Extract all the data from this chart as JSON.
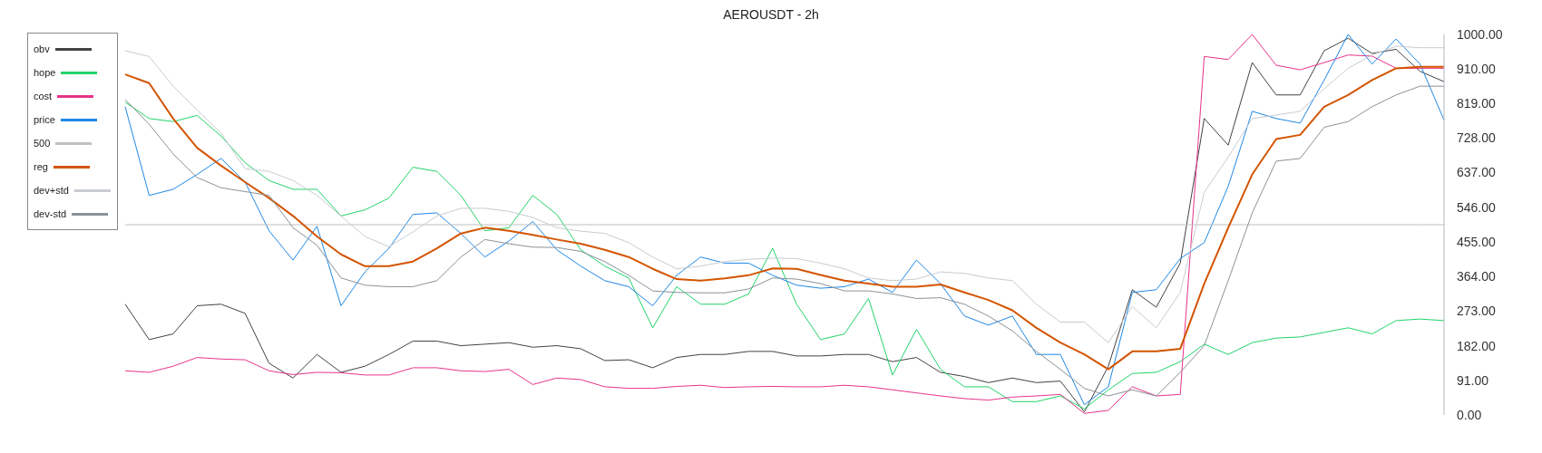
{
  "chart_data": {
    "type": "line",
    "title": "AEROUSDT - 2h",
    "categories": [
      null,
      null,
      null,
      null,
      null,
      null,
      null,
      null,
      null,
      null,
      null,
      null,
      null,
      null,
      null,
      null,
      null,
      null,
      null,
      null,
      null,
      null,
      null,
      null,
      null,
      null,
      null,
      null,
      null,
      null,
      null,
      null,
      null,
      null,
      null,
      null,
      null,
      null,
      null,
      null,
      null,
      null,
      null,
      null,
      null,
      null,
      null,
      null,
      null,
      null,
      null,
      null,
      null,
      null,
      null,
      null
    ],
    "series": [
      {
        "name": "obv",
        "color": "#424242",
        "values": [
          291,
          198,
          213,
          287,
          291,
          267,
          136,
          97,
          159,
          112,
          128,
          159,
          194,
          194,
          182,
          186,
          190,
          178,
          182,
          174,
          143,
          145,
          124,
          151,
          159,
          159,
          167,
          167,
          155,
          155,
          159,
          159,
          140,
          151,
          112,
          101,
          85,
          97,
          85,
          89,
          8,
          128,
          329,
          283,
          399,
          779,
          709,
          926,
          841,
          841,
          957,
          990,
          950,
          961,
          903,
          876
        ]
      },
      {
        "name": "hope",
        "color": "#22d36b",
        "values": [
          822,
          779,
          771,
          787,
          733,
          663,
          616,
          593,
          593,
          523,
          539,
          570,
          651,
          640,
          577,
          484,
          492,
          577,
          527,
          434,
          391,
          360,
          229,
          337,
          291,
          291,
          318,
          438,
          291,
          198,
          213,
          306,
          105,
          225,
          120,
          74,
          74,
          35,
          35,
          50,
          16,
          66,
          109,
          112,
          140,
          186,
          159,
          190,
          202,
          205,
          217,
          229,
          213,
          248,
          252,
          248
        ]
      },
      {
        "name": "cost",
        "color": "#e8338a",
        "values": [
          116,
          112,
          128,
          151,
          147,
          145,
          116,
          106,
          112,
          111,
          105,
          105,
          124,
          124,
          116,
          114,
          120,
          80,
          97,
          93,
          74,
          70,
          70,
          75,
          78,
          72,
          74,
          75,
          74,
          74,
          78,
          74,
          66,
          58,
          50,
          43,
          39,
          47,
          50,
          54,
          4,
          12,
          74,
          50,
          54,
          942,
          934,
          1000,
          919,
          907,
          926,
          946,
          943,
          911,
          911,
          911
        ]
      },
      {
        "name": "price",
        "color": "#1e88e5",
        "values": [
          810,
          577,
          593,
          632,
          674,
          612,
          484,
          407,
          496,
          287,
          376,
          438,
          527,
          531,
          477,
          415,
          457,
          508,
          434,
          391,
          353,
          337,
          287,
          367,
          415,
          399,
          399,
          367,
          341,
          333,
          337,
          357,
          322,
          407,
          345,
          260,
          236,
          260,
          159,
          159,
          27,
          74,
          322,
          329,
          411,
          453,
          601,
          798,
          779,
          767,
          880,
          1000,
          922,
          988,
          922,
          775
        ]
      },
      {
        "name": "500",
        "color": "#c0c0c0",
        "values": [
          500,
          500,
          500,
          500,
          500,
          500,
          500,
          500,
          500,
          500,
          500,
          500,
          500,
          500,
          500,
          500,
          500,
          500,
          500,
          500,
          500,
          500,
          500,
          500,
          500,
          500,
          500,
          500,
          500,
          500,
          500,
          500,
          500,
          500,
          500,
          500,
          500,
          500,
          500,
          500,
          500,
          500,
          500,
          500,
          500,
          500,
          500,
          500,
          500,
          500,
          500,
          500,
          500,
          500,
          500,
          500
        ]
      },
      {
        "name": "reg",
        "color": "#d35400",
        "values": [
          895,
          872,
          779,
          702,
          655,
          612,
          570,
          523,
          469,
          422,
          391,
          391,
          403,
          438,
          477,
          492,
          484,
          473,
          461,
          450,
          434,
          415,
          384,
          357,
          353,
          359,
          367,
          385,
          384,
          368,
          353,
          345,
          337,
          337,
          343,
          322,
          302,
          275,
          229,
          190,
          159,
          120,
          167,
          167,
          174,
          345,
          492,
          632,
          725,
          736,
          810,
          841,
          880,
          911,
          915,
          915
        ]
      },
      {
        "name": "dev+std",
        "color": "#c8ccd0",
        "values": [
          957,
          942,
          864,
          802,
          740,
          647,
          640,
          616,
          577,
          523,
          469,
          442,
          481,
          523,
          543,
          543,
          535,
          519,
          492,
          483,
          477,
          453,
          415,
          384,
          391,
          403,
          409,
          412,
          411,
          399,
          384,
          360,
          353,
          357,
          376,
          372,
          360,
          353,
          291,
          244,
          244,
          190,
          285,
          229,
          322,
          585,
          678,
          779,
          788,
          798,
          857,
          911,
          946,
          969,
          965,
          965
        ]
      },
      {
        "name": "dev-std",
        "color": "#8a9299",
        "values": [
          829,
          764,
          686,
          624,
          597,
          587,
          577,
          492,
          446,
          360,
          341,
          337,
          337,
          353,
          415,
          461,
          450,
          441,
          440,
          430,
          403,
          367,
          326,
          322,
          321,
          321,
          331,
          360,
          357,
          345,
          326,
          326,
          318,
          306,
          308,
          291,
          260,
          221,
          167,
          120,
          70,
          50,
          66,
          50,
          112,
          182,
          353,
          531,
          667,
          674,
          756,
          771,
          810,
          841,
          864,
          864
        ]
      }
    ],
    "ylim": [
      0,
      1000
    ],
    "yticks": [
      {
        "value": 0,
        "label": "0.00"
      },
      {
        "value": 91,
        "label": "91.00"
      },
      {
        "value": 182,
        "label": "182.00"
      },
      {
        "value": 273,
        "label": "273.00"
      },
      {
        "value": 364,
        "label": "364.00"
      },
      {
        "value": 455,
        "label": "455.00"
      },
      {
        "value": 546,
        "label": "546.00"
      },
      {
        "value": 637,
        "label": "637.00"
      },
      {
        "value": 728,
        "label": "728.00"
      },
      {
        "value": 819,
        "label": "819.00"
      },
      {
        "value": 910,
        "label": "910.00"
      },
      {
        "value": 1000,
        "label": "1000.00"
      }
    ],
    "grid": false,
    "legend": "top left",
    "tick_labels": "y",
    "marker": "none",
    "line_style": "solid"
  }
}
